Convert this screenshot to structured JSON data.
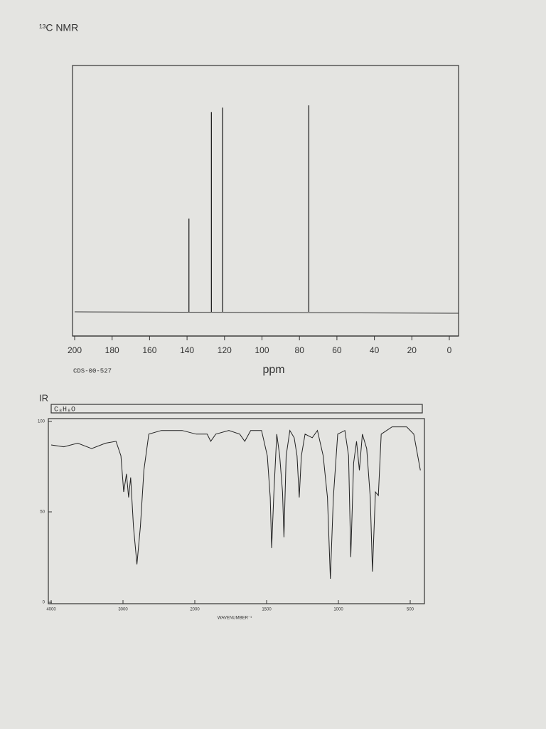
{
  "chart_data": [
    {
      "type": "stick",
      "title": "¹³C NMR",
      "code": "CDS-00-527",
      "xlabel": "ppm",
      "x": [
        139,
        127,
        121,
        75
      ],
      "values": [
        42,
        90,
        92,
        93
      ],
      "xlim": [
        200,
        0
      ],
      "xticks": [
        200,
        180,
        160,
        140,
        120,
        100,
        80,
        60,
        40,
        20,
        0
      ],
      "color": "#222"
    },
    {
      "type": "line",
      "title": "IR",
      "formula": "C₈H₈O",
      "xlabel": "WAVENUMBER⁻¹",
      "x": [
        4000,
        3825,
        3631,
        3437,
        3243,
        3097,
        3029,
        2990,
        2951,
        2922,
        2893,
        2854,
        2806,
        2757,
        2709,
        2641,
        2466,
        2175,
        1990,
        1914,
        1889,
        1854,
        1763,
        1687,
        1652,
        1611,
        1535,
        1495,
        1475,
        1465,
        1449,
        1429,
        1409,
        1389,
        1379,
        1364,
        1338,
        1308,
        1288,
        1273,
        1258,
        1232,
        1182,
        1146,
        1106,
        1076,
        1056,
        1035,
        1005,
        955,
        929,
        914,
        894,
        874,
        854,
        833,
        803,
        778,
        763,
        742,
        722,
        702,
        626,
        525,
        475,
        429
      ],
      "values": [
        87,
        86,
        88,
        85,
        88,
        89,
        81,
        61,
        71,
        58,
        69,
        42,
        21,
        42,
        73,
        93,
        95,
        95,
        93,
        93,
        89,
        93,
        95,
        93,
        89,
        95,
        95,
        81,
        58,
        30,
        61,
        93,
        81,
        61,
        36,
        81,
        95,
        91,
        81,
        58,
        81,
        93,
        91,
        95,
        81,
        58,
        13,
        58,
        93,
        95,
        81,
        25,
        77,
        89,
        73,
        93,
        85,
        58,
        17,
        61,
        59,
        93,
        97,
        97,
        93,
        73
      ],
      "xlim": [
        4000,
        400
      ],
      "xticks": [
        4000,
        3000,
        2000,
        1500,
        1000,
        500
      ],
      "ylim": [
        0,
        100
      ],
      "yticks": [
        0,
        50,
        100
      ],
      "color": "#222"
    }
  ]
}
